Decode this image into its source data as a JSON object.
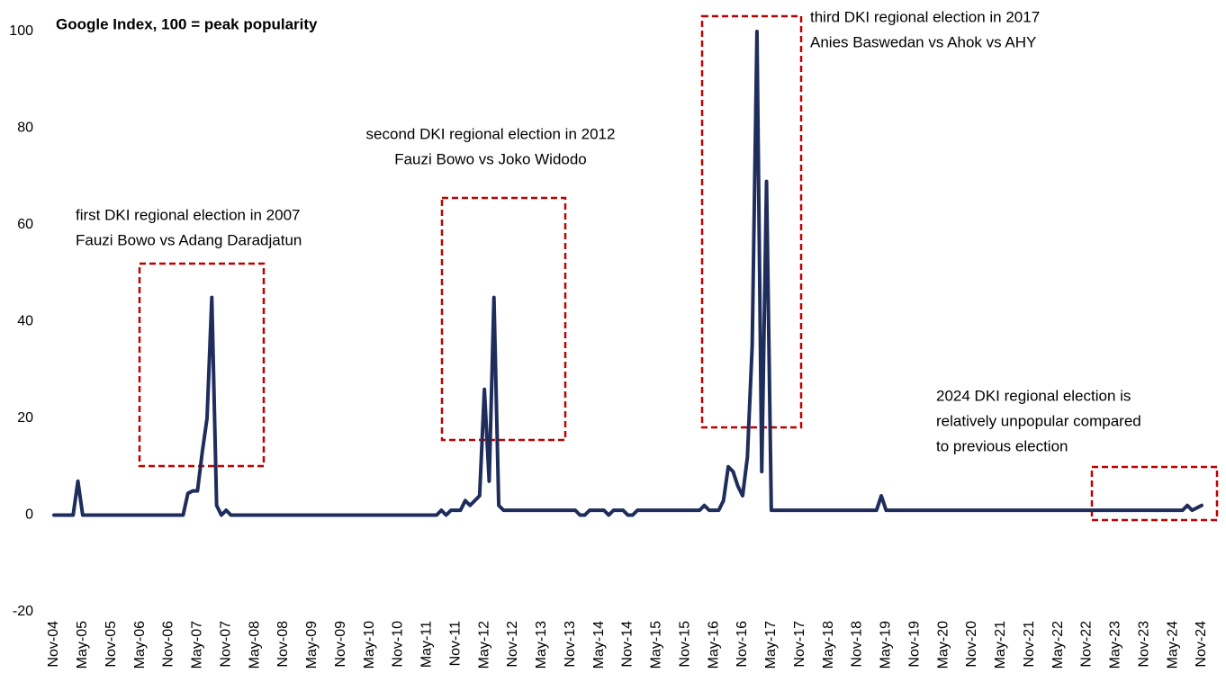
{
  "chart_data": {
    "type": "line",
    "title": "Google Index, 100 = peak popularity",
    "ylim": [
      -20,
      100
    ],
    "yticks": [
      -20,
      0,
      20,
      40,
      60,
      80,
      100
    ],
    "grid": false,
    "annotations": [
      [
        "first DKI regional election in 2007",
        "Fauzi Bowo vs Adang Daradjatun"
      ],
      [
        "second DKI regional election in 2012",
        "Fauzi Bowo vs Joko Widodo"
      ],
      [
        "third DKI regional election in 2017",
        "Anies Baswedan vs Ahok vs AHY"
      ],
      [
        "2024 DKI regional election is",
        "relatively unpopular compared",
        "to previous election"
      ]
    ],
    "categories": [
      "Nov-04",
      null,
      null,
      null,
      null,
      null,
      "May-05",
      null,
      null,
      null,
      null,
      null,
      "Nov-05",
      null,
      null,
      null,
      null,
      null,
      "May-06",
      null,
      null,
      null,
      null,
      null,
      "Nov-06",
      null,
      null,
      null,
      null,
      null,
      "May-07",
      null,
      null,
      null,
      null,
      null,
      "Nov-07",
      null,
      null,
      null,
      null,
      null,
      "May-08",
      null,
      null,
      null,
      null,
      null,
      "Nov-08",
      null,
      null,
      null,
      null,
      null,
      "May-09",
      null,
      null,
      null,
      null,
      null,
      "Nov-09",
      null,
      null,
      null,
      null,
      null,
      "May-10",
      null,
      null,
      null,
      null,
      null,
      "Nov-10",
      null,
      null,
      null,
      null,
      null,
      "May-11",
      null,
      null,
      null,
      null,
      null,
      "Nov-11",
      null,
      null,
      null,
      null,
      null,
      "May-12",
      null,
      null,
      null,
      null,
      null,
      "Nov-12",
      null,
      null,
      null,
      null,
      null,
      "May-13",
      null,
      null,
      null,
      null,
      null,
      "Nov-13",
      null,
      null,
      null,
      null,
      null,
      "May-14",
      null,
      null,
      null,
      null,
      null,
      "Nov-14",
      null,
      null,
      null,
      null,
      null,
      "May-15",
      null,
      null,
      null,
      null,
      null,
      "Nov-15",
      null,
      null,
      null,
      null,
      null,
      "May-16",
      null,
      null,
      null,
      null,
      null,
      "Nov-16",
      null,
      null,
      null,
      null,
      null,
      "May-17",
      null,
      null,
      null,
      null,
      null,
      "Nov-17",
      null,
      null,
      null,
      null,
      null,
      "May-18",
      null,
      null,
      null,
      null,
      null,
      "Nov-18",
      null,
      null,
      null,
      null,
      null,
      "May-19",
      null,
      null,
      null,
      null,
      null,
      "Nov-19",
      null,
      null,
      null,
      null,
      null,
      "May-20",
      null,
      null,
      null,
      null,
      null,
      "Nov-20",
      null,
      null,
      null,
      null,
      null,
      "May-21",
      null,
      null,
      null,
      null,
      null,
      "Nov-21",
      null,
      null,
      null,
      null,
      null,
      "May-22",
      null,
      null,
      null,
      null,
      null,
      "Nov-22",
      null,
      null,
      null,
      null,
      null,
      "May-23",
      null,
      null,
      null,
      null,
      null,
      "Nov-23",
      null,
      null,
      null,
      null,
      null,
      "May-24",
      null,
      null,
      null,
      null,
      null,
      "Nov-24"
    ],
    "series": [
      {
        "name": "Google Index",
        "color": "#1f2d5c",
        "values": [
          0,
          0,
          0,
          0,
          0,
          7,
          0,
          0,
          0,
          0,
          0,
          0,
          0,
          0,
          0,
          0,
          0,
          0,
          0,
          0,
          0,
          0,
          0,
          0,
          0,
          0,
          0,
          0,
          4.5,
          5,
          5,
          13,
          20,
          45,
          2,
          0,
          1,
          0,
          0,
          0,
          0,
          0,
          0,
          0,
          0,
          0,
          0,
          0,
          0,
          0,
          0,
          0,
          0,
          0,
          0,
          0,
          0,
          0,
          0,
          0,
          0,
          0,
          0,
          0,
          0,
          0,
          0,
          0,
          0,
          0,
          0,
          0,
          0,
          0,
          0,
          0,
          0,
          0,
          0,
          0,
          0,
          1,
          0,
          1,
          1,
          1,
          3,
          2,
          3,
          4,
          26,
          7,
          45,
          2,
          1,
          1,
          1,
          1,
          1,
          1,
          1,
          1,
          1,
          1,
          1,
          1,
          1,
          1,
          1,
          1,
          0,
          0,
          1,
          1,
          1,
          1,
          0,
          1,
          1,
          1,
          0,
          0,
          1,
          1,
          1,
          1,
          1,
          1,
          1,
          1,
          1,
          1,
          1,
          1,
          1,
          1,
          2,
          1,
          1,
          1,
          3,
          10,
          9,
          6,
          4,
          12,
          35,
          100,
          9,
          69,
          1,
          1,
          1,
          1,
          1,
          1,
          1,
          1,
          1,
          1,
          1,
          1,
          1,
          1,
          1,
          1,
          1,
          1,
          1,
          1,
          1,
          1,
          1,
          4,
          1,
          1,
          1,
          1,
          1,
          1,
          1,
          1,
          1,
          1,
          1,
          1,
          1,
          1,
          1,
          1,
          1,
          1,
          1,
          1,
          1,
          1,
          1,
          1,
          1,
          1,
          1,
          1,
          1,
          1,
          1,
          1,
          1,
          1,
          1,
          1,
          1,
          1,
          1,
          1,
          1,
          1,
          1,
          1,
          1,
          1,
          1,
          1,
          1,
          1,
          1,
          1,
          1,
          1,
          1,
          1,
          1,
          1,
          1,
          1,
          1,
          1,
          1,
          2,
          1,
          1.5,
          2
        ]
      }
    ]
  }
}
